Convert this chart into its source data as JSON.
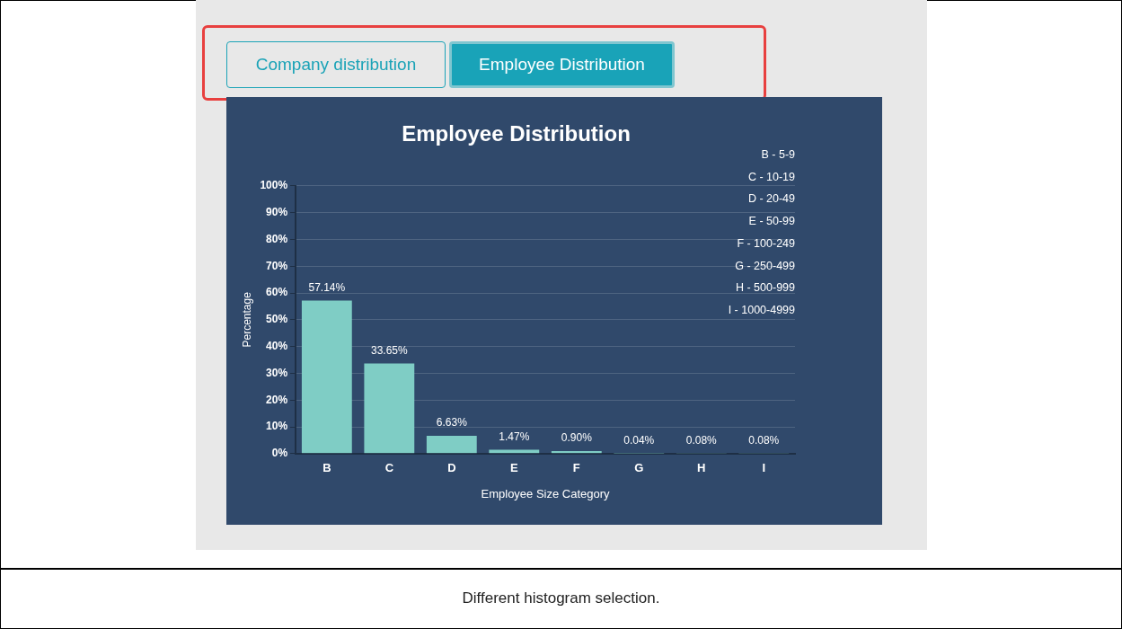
{
  "chart_data": {
    "type": "bar",
    "title": "Employee Distribution",
    "xlabel": "Employee Size Category",
    "ylabel": "Percentage",
    "categories": [
      "B",
      "C",
      "D",
      "E",
      "F",
      "G",
      "H",
      "I"
    ],
    "values": [
      57.14,
      33.65,
      6.63,
      1.47,
      0.9,
      0.04,
      0.08,
      0.08
    ],
    "value_labels": [
      "57.14%",
      "33.65%",
      "6.63%",
      "1.47%",
      "0.90%",
      "0.04%",
      "0.08%",
      "0.08%"
    ],
    "color": "#7fcdc5",
    "ylim": [
      0,
      100
    ],
    "yticks": [
      {
        "value": 0,
        "label": "0%"
      },
      {
        "value": 10,
        "label": "10%"
      },
      {
        "value": 20,
        "label": "20%"
      },
      {
        "value": 30,
        "label": "30%"
      },
      {
        "value": 40,
        "label": "40%"
      },
      {
        "value": 50,
        "label": "50%"
      },
      {
        "value": 60,
        "label": "60%"
      },
      {
        "value": 70,
        "label": "70%"
      },
      {
        "value": 80,
        "label": "80%"
      },
      {
        "value": 90,
        "label": "90%"
      },
      {
        "value": 100,
        "label": "100%"
      }
    ],
    "grid": "y",
    "annotations": [
      "Company distribution",
      "Employee Distribution",
      "B - 5-9",
      "C - 10-19",
      "D - 20-49",
      "E - 50-99",
      "F - 100-249",
      "G - 250-499",
      "H - 500-999",
      "I - 1000-4999",
      "Different histogram selection."
    ]
  }
}
